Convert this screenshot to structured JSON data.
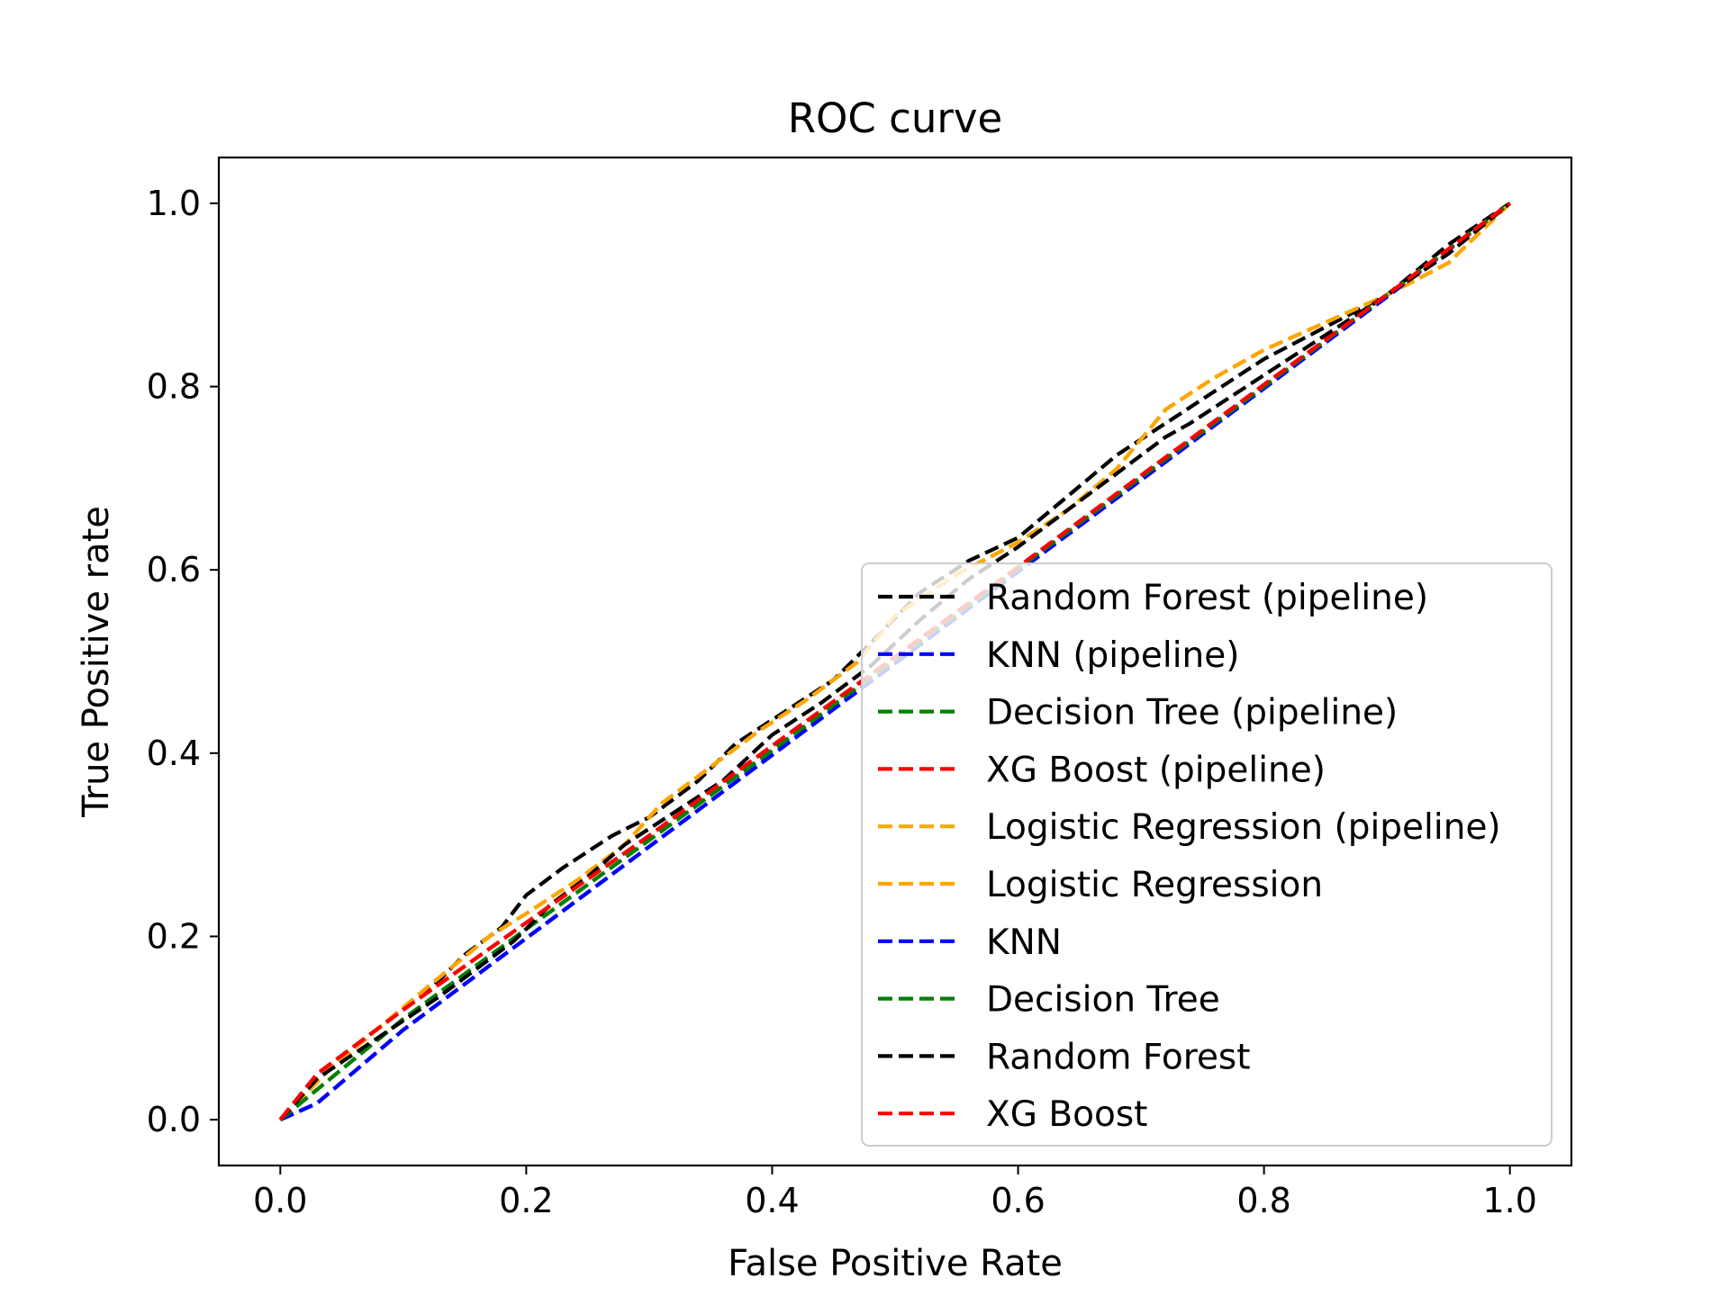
{
  "chart_data": {
    "type": "line",
    "title": "ROC curve",
    "xlabel": "False Positive Rate",
    "ylabel": "True Positive rate",
    "xlim": [
      -0.05,
      1.05
    ],
    "ylim": [
      -0.05,
      1.05
    ],
    "xticks": [
      "0.0",
      "0.2",
      "0.4",
      "0.6",
      "0.8",
      "1.0"
    ],
    "yticks": [
      "0.0",
      "0.2",
      "0.4",
      "0.6",
      "0.8",
      "1.0"
    ],
    "grid": false,
    "legend_position": "lower-right",
    "series": [
      {
        "name": "Random Forest (pipeline)",
        "color": "#000000",
        "linestyle": "dashed",
        "x": [
          0,
          0.03,
          0.08,
          0.12,
          0.15,
          0.18,
          0.2,
          0.23,
          0.27,
          0.3,
          0.34,
          0.37,
          0.41,
          0.45,
          0.48,
          0.52,
          0.56,
          0.6,
          0.64,
          0.68,
          0.72,
          0.76,
          0.8,
          0.85,
          0.9,
          0.95,
          1.0
        ],
        "y": [
          0,
          0.05,
          0.1,
          0.14,
          0.18,
          0.21,
          0.245,
          0.275,
          0.31,
          0.33,
          0.37,
          0.41,
          0.445,
          0.48,
          0.52,
          0.575,
          0.61,
          0.635,
          0.68,
          0.725,
          0.76,
          0.795,
          0.83,
          0.865,
          0.9,
          0.955,
          1.0
        ]
      },
      {
        "name": "KNN (pipeline)",
        "color": "#0000ff",
        "linestyle": "dashed",
        "x": [
          0,
          0.03,
          0.1,
          0.2,
          0.3,
          0.4,
          0.5,
          0.6,
          0.7,
          0.8,
          0.9,
          1.0
        ],
        "y": [
          0,
          0.018,
          0.098,
          0.198,
          0.298,
          0.398,
          0.498,
          0.598,
          0.698,
          0.798,
          0.898,
          1.0
        ]
      },
      {
        "name": "Decision Tree (pipeline)",
        "color": "#008000",
        "linestyle": "dashed",
        "x": [
          0,
          0.1,
          0.2,
          0.3,
          0.4,
          0.5,
          0.6,
          0.7,
          0.8,
          0.9,
          1.0
        ],
        "y": [
          0,
          0.11,
          0.208,
          0.305,
          0.403,
          0.502,
          0.601,
          0.701,
          0.8,
          0.9,
          1.0
        ]
      },
      {
        "name": "XG Boost (pipeline)",
        "color": "#ff0000",
        "linestyle": "dashed",
        "x": [
          0,
          0.03,
          0.1,
          0.2,
          0.3,
          0.4,
          0.5,
          0.6,
          0.7,
          0.8,
          0.9,
          1.0
        ],
        "y": [
          0,
          0.05,
          0.12,
          0.215,
          0.31,
          0.408,
          0.505,
          0.603,
          0.703,
          0.802,
          0.9,
          1.0
        ]
      },
      {
        "name": "Logistic Regression (pipeline)",
        "color": "#ffa500",
        "linestyle": "dashed",
        "x": [
          0,
          0.04,
          0.08,
          0.12,
          0.17,
          0.2,
          0.24,
          0.28,
          0.31,
          0.35,
          0.39,
          0.43,
          0.47,
          0.5,
          0.55,
          0.6,
          0.64,
          0.68,
          0.72,
          0.76,
          0.8,
          0.85,
          0.9,
          0.95,
          1.0
        ],
        "y": [
          0,
          0.055,
          0.1,
          0.145,
          0.2,
          0.225,
          0.26,
          0.3,
          0.345,
          0.385,
          0.425,
          0.46,
          0.5,
          0.55,
          0.595,
          0.63,
          0.665,
          0.71,
          0.775,
          0.81,
          0.84,
          0.87,
          0.9,
          0.935,
          1.0
        ]
      },
      {
        "name": "Logistic Regression",
        "color": "#ffa500",
        "linestyle": "dashed",
        "x": [
          0,
          0.04,
          0.08,
          0.12,
          0.17,
          0.2,
          0.24,
          0.28,
          0.31,
          0.35,
          0.39,
          0.43,
          0.47,
          0.5,
          0.55,
          0.6,
          0.64,
          0.68,
          0.72,
          0.76,
          0.8,
          0.85,
          0.9,
          0.95,
          1.0
        ],
        "y": [
          0,
          0.055,
          0.1,
          0.145,
          0.2,
          0.225,
          0.26,
          0.3,
          0.345,
          0.385,
          0.425,
          0.46,
          0.5,
          0.55,
          0.595,
          0.63,
          0.665,
          0.71,
          0.775,
          0.81,
          0.84,
          0.87,
          0.9,
          0.935,
          1.0
        ]
      },
      {
        "name": "KNN",
        "color": "#0000ff",
        "linestyle": "dashed",
        "x": [
          0,
          0.03,
          0.1,
          0.2,
          0.3,
          0.4,
          0.5,
          0.6,
          0.7,
          0.8,
          0.9,
          1.0
        ],
        "y": [
          0,
          0.018,
          0.098,
          0.198,
          0.298,
          0.398,
          0.498,
          0.598,
          0.698,
          0.798,
          0.898,
          1.0
        ]
      },
      {
        "name": "Decision Tree",
        "color": "#008000",
        "linestyle": "dashed",
        "x": [
          0,
          0.1,
          0.2,
          0.3,
          0.4,
          0.5,
          0.6,
          0.7,
          0.8,
          0.9,
          1.0
        ],
        "y": [
          0,
          0.11,
          0.208,
          0.305,
          0.403,
          0.502,
          0.601,
          0.701,
          0.8,
          0.9,
          1.0
        ]
      },
      {
        "name": "Random Forest",
        "color": "#000000",
        "linestyle": "dashed",
        "x": [
          0,
          0.03,
          0.08,
          0.13,
          0.16,
          0.19,
          0.22,
          0.25,
          0.28,
          0.32,
          0.36,
          0.4,
          0.44,
          0.48,
          0.52,
          0.56,
          0.6,
          0.64,
          0.68,
          0.72,
          0.74,
          0.78,
          0.82,
          0.86,
          0.9,
          0.95,
          1.0
        ],
        "y": [
          0,
          0.045,
          0.09,
          0.135,
          0.165,
          0.195,
          0.235,
          0.265,
          0.3,
          0.335,
          0.37,
          0.42,
          0.455,
          0.495,
          0.545,
          0.59,
          0.625,
          0.665,
          0.705,
          0.745,
          0.76,
          0.795,
          0.83,
          0.865,
          0.9,
          0.945,
          1.0
        ]
      },
      {
        "name": "XG Boost",
        "color": "#ff0000",
        "linestyle": "dashed",
        "x": [
          0,
          0.03,
          0.1,
          0.2,
          0.3,
          0.4,
          0.5,
          0.6,
          0.7,
          0.8,
          0.9,
          1.0
        ],
        "y": [
          0,
          0.05,
          0.12,
          0.215,
          0.31,
          0.408,
          0.505,
          0.603,
          0.703,
          0.802,
          0.9,
          1.0
        ]
      }
    ]
  }
}
